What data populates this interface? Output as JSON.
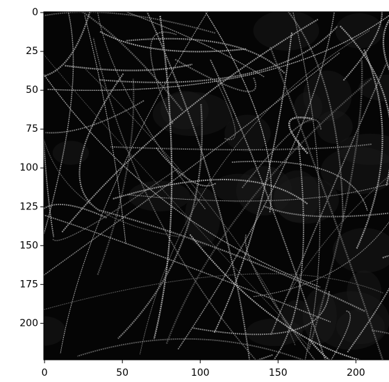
{
  "chart_data": {
    "type": "image",
    "xlim": [
      -0.5,
      223.5
    ],
    "ylim": [
      223.5,
      -0.5
    ],
    "xticks": [
      0,
      50,
      100,
      150,
      200
    ],
    "yticks": [
      0,
      25,
      50,
      75,
      100,
      125,
      150,
      175,
      200
    ]
  }
}
